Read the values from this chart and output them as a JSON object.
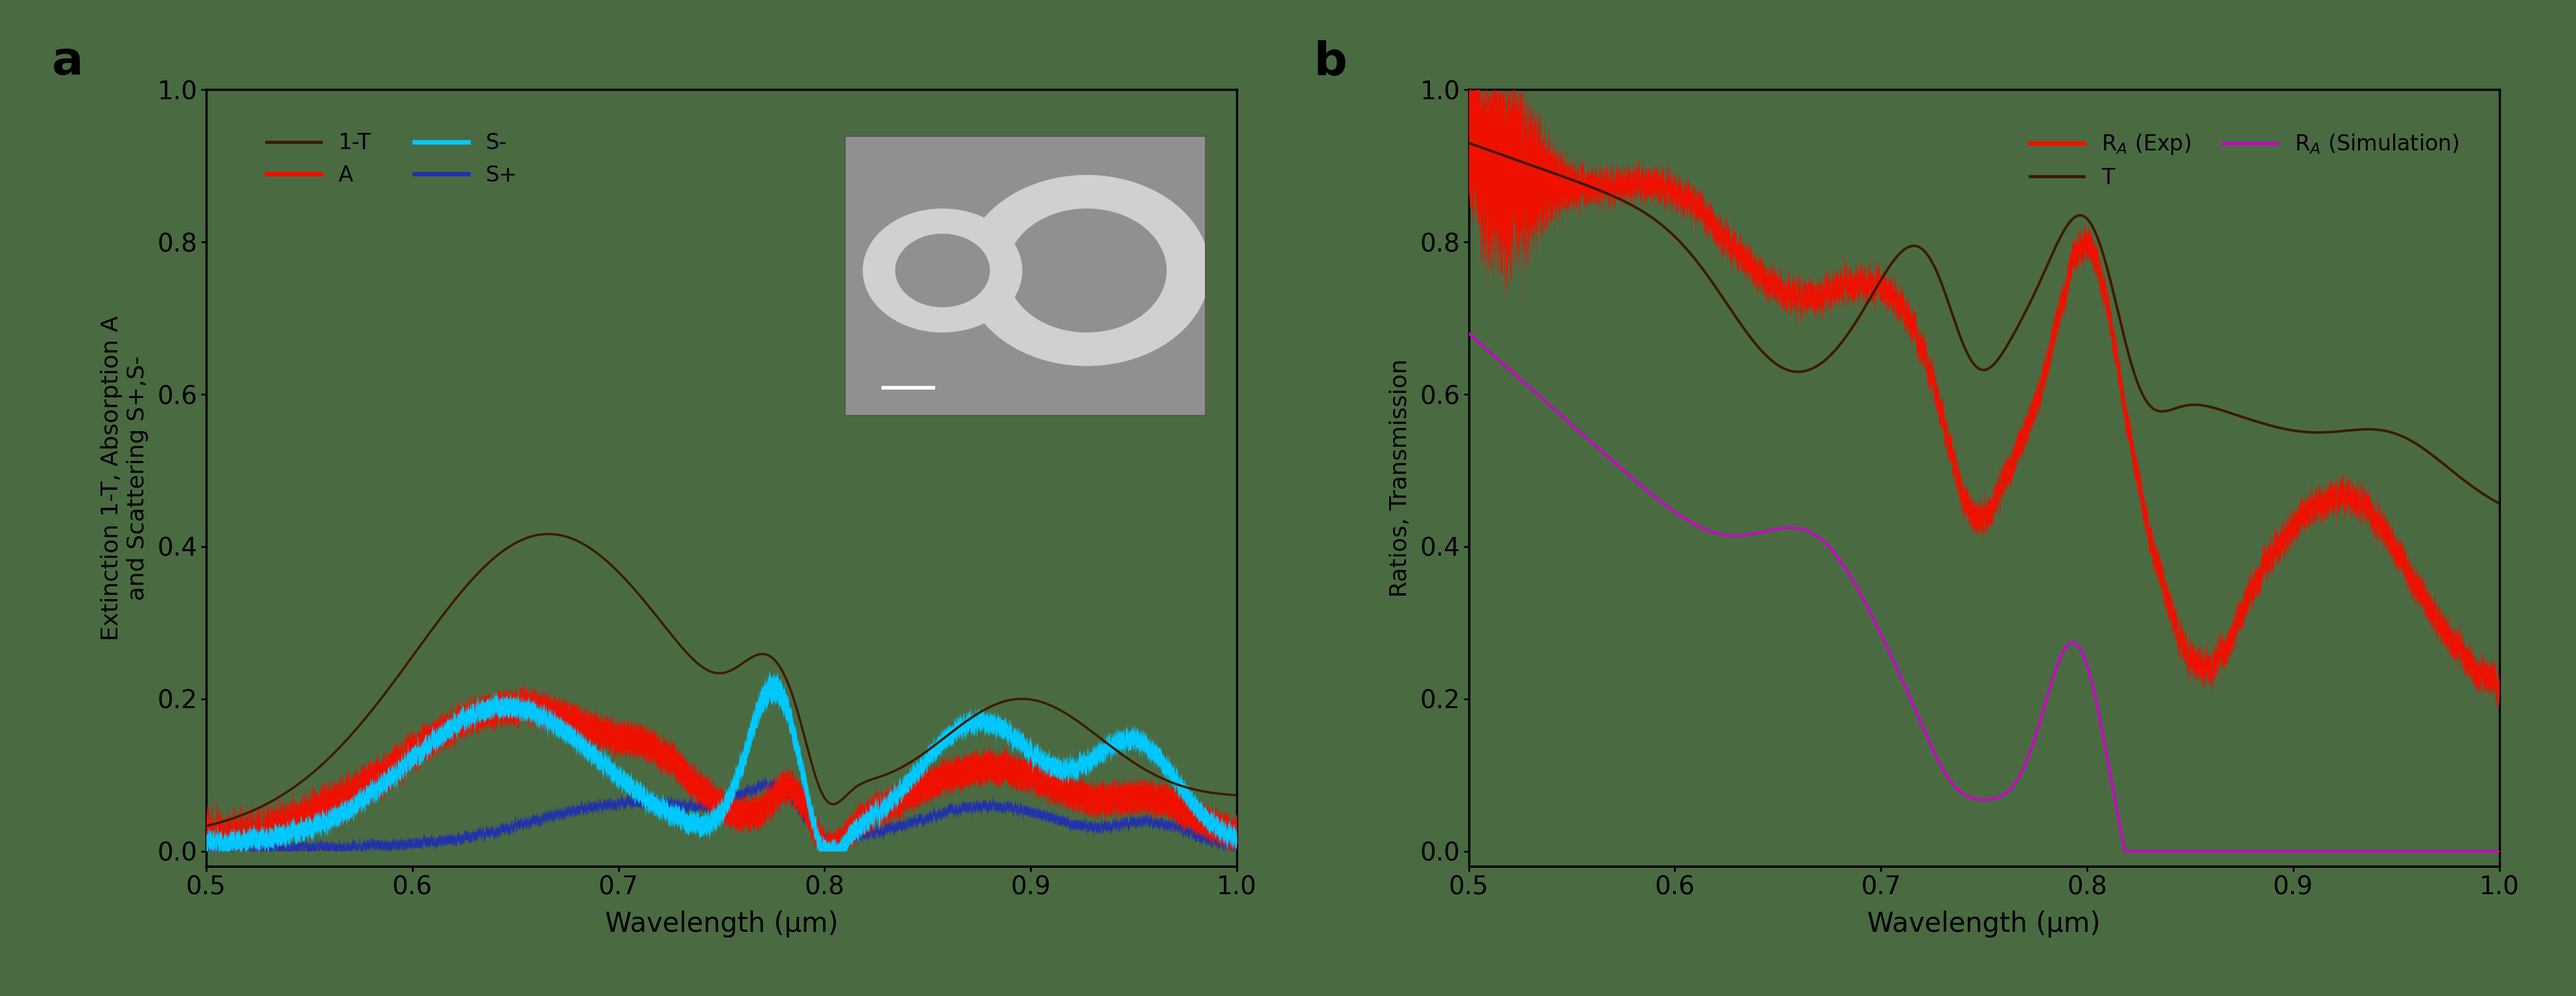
{
  "bg_color": "#4a6b42",
  "fig_width": 39.73,
  "fig_height": 15.36,
  "xlim": [
    0.5,
    1.0
  ],
  "ylim_a": [
    -0.02,
    1.0
  ],
  "ylim_b": [
    -0.02,
    1.0
  ],
  "xlabel": "Wavelength (μm)",
  "ylabel_a": "Extinction 1-T, Absorption A\nand Scattering S+,S-",
  "ylabel_b": "Ratios, Transmission",
  "label_a": "a",
  "label_b": "b",
  "color_1T": "#3d1a00",
  "color_A": "#ee1100",
  "color_Sm": "#00c8ff",
  "color_Sp": "#2233aa",
  "color_T": "#3d1a00",
  "color_RA_exp": "#ee1100",
  "color_RA_sim": "#cc00cc",
  "xticks": [
    0.5,
    0.6,
    0.7,
    0.8,
    0.9,
    1.0
  ],
  "yticks": [
    0,
    0.2,
    0.4,
    0.6,
    0.8,
    1.0
  ]
}
